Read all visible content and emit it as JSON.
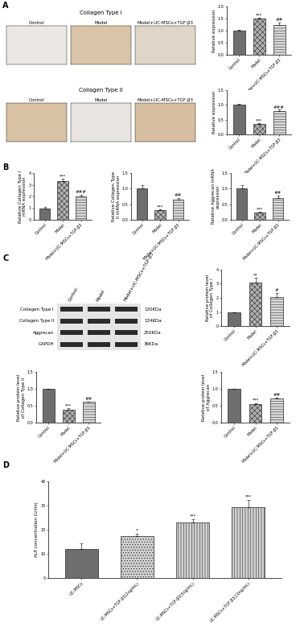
{
  "panel_letters": [
    "A",
    "B",
    "C",
    "D"
  ],
  "micrographs": [
    {
      "title": "Collagen Type I",
      "labels": [
        "Control",
        "Model",
        "Model+UC-MSCs+TGF-β3"
      ]
    },
    {
      "title": "Collagen Type II",
      "labels": [
        "Control",
        "Model",
        "Model+UC-MSCs+TGF-β3"
      ]
    }
  ],
  "western_blot": {
    "lanes": [
      "Control",
      "Model",
      "Model+UC-MSCs+TGF-β3"
    ],
    "bands": [
      {
        "label": "Collagen Type I",
        "size": "130KDa"
      },
      {
        "label": "Collagen Type II",
        "size": "134KDa"
      },
      {
        "label": "Aggrecan",
        "size": "250KDa"
      },
      {
        "label": "GAPDH",
        "size": "36KDa"
      }
    ]
  },
  "chart_data": [
    {
      "type": "bar",
      "ylabel": "Relative expression",
      "categories": [
        "Control",
        "Model",
        "Model+UC-MSCs+TGF-β3"
      ],
      "values": [
        1.0,
        1.5,
        1.25
      ],
      "errors": [
        0.03,
        0.04,
        0.08
      ],
      "annotations": [
        null,
        "***",
        "##"
      ],
      "colors": [
        "#6e6e6e",
        "#b0b0b0",
        "#d9d9d9"
      ],
      "ylim": [
        0,
        2.0
      ],
      "yticks": [
        {
          "value": 0,
          "label": "0.0"
        },
        0.5,
        {
          "value": 1,
          "label": "1.0"
        },
        1.5,
        {
          "value": 2,
          "label": "2.0"
        }
      ]
    },
    {
      "type": "bar",
      "ylabel": "Relative expression",
      "categories": [
        "Control",
        "Model",
        "Model+UC-MSCs+TGF-β3"
      ],
      "values": [
        1.0,
        0.35,
        0.8
      ],
      "errors": [
        0.03,
        0.02,
        0.04
      ],
      "annotations": [
        null,
        "***",
        "###"
      ],
      "colors": [
        "#6e6e6e",
        "#b0b0b0",
        "#d9d9d9"
      ],
      "ylim": [
        0,
        1.5
      ],
      "yticks": [
        {
          "value": 0,
          "label": "0.0"
        },
        0.5,
        {
          "value": 1,
          "label": "1.0"
        },
        1.5
      ]
    },
    {
      "type": "bar",
      "ylabel": "Relative Collagen Type I mRNA expression",
      "categories": [
        "Control",
        "Model",
        "Model+UC-MSCs+TGF-β3"
      ],
      "values": [
        1.0,
        3.3,
        2.0
      ],
      "errors": [
        0.08,
        0.2,
        0.15
      ],
      "annotations": [
        null,
        "***",
        "###"
      ],
      "colors": [
        "#6e6e6e",
        "#b0b0b0",
        "#d9d9d9"
      ],
      "ylim": [
        0,
        4
      ],
      "yticks": [
        0,
        1,
        2,
        3,
        4
      ]
    },
    {
      "type": "bar",
      "ylabel": "Relative Collagen Type II mRNA expression",
      "categories": [
        "Control",
        "Model",
        "Model+UC-MSCs+TGF-β3"
      ],
      "values": [
        1.0,
        0.3,
        0.65
      ],
      "errors": [
        0.12,
        0.04,
        0.05
      ],
      "annotations": [
        null,
        "***",
        "##"
      ],
      "colors": [
        "#6e6e6e",
        "#b0b0b0",
        "#d9d9d9"
      ],
      "ylim": [
        0,
        1.5
      ],
      "yticks": [
        {
          "value": 0,
          "label": "0.0"
        },
        0.5,
        {
          "value": 1,
          "label": "1.0"
        },
        1.5
      ]
    },
    {
      "type": "bar",
      "ylabel": "Relative Aggrecan mRNA expression",
      "categories": [
        "Control",
        "Model",
        "Model+UC-MSCs+TGF-β3"
      ],
      "values": [
        1.0,
        0.22,
        0.7
      ],
      "errors": [
        0.1,
        0.03,
        0.08
      ],
      "annotations": [
        null,
        "***",
        "##"
      ],
      "colors": [
        "#6e6e6e",
        "#b0b0b0",
        "#d9d9d9"
      ],
      "ylim": [
        0,
        1.5
      ],
      "yticks": [
        {
          "value": 0,
          "label": "0.0"
        },
        0.5,
        {
          "value": 1,
          "label": "1.0"
        },
        1.5
      ]
    },
    {
      "type": "bar",
      "ylabel": "Relative protein level of Collagen Type I",
      "categories": [
        "Control",
        "Model",
        "Model+UC-MSCs+TGF-β3"
      ],
      "values": [
        1.0,
        3.1,
        2.05
      ],
      "errors": [
        0,
        0.3,
        0.3
      ],
      "annotations": [
        null,
        "**",
        "#"
      ],
      "colors": [
        "#6e6e6e",
        "#b0b0b0",
        "#d9d9d9"
      ],
      "ylim": [
        0,
        4
      ],
      "yticks": [
        0,
        1,
        2,
        3,
        4
      ]
    },
    {
      "type": "bar",
      "ylabel": "Relative protein level of Collagen Type II",
      "categories": [
        "Control",
        "Model",
        "Model+UC-MSCs+TGF-β3"
      ],
      "values": [
        1.0,
        0.37,
        0.62
      ],
      "errors": [
        0,
        0.05,
        0
      ],
      "annotations": [
        null,
        "***",
        "##"
      ],
      "colors": [
        "#6e6e6e",
        "#b0b0b0",
        "#d9d9d9"
      ],
      "ylim": [
        0,
        1.5
      ],
      "yticks": [
        {
          "value": 0,
          "label": "0.0"
        },
        0.5,
        {
          "value": 1,
          "label": "1.0"
        },
        1.5
      ]
    },
    {
      "type": "bar",
      "ylabel": "Relative protein level of Aggrecan",
      "categories": [
        "Control",
        "Model",
        "Model+UC-MSCs+TGF-β3"
      ],
      "values": [
        1.0,
        0.55,
        0.72
      ],
      "errors": [
        0,
        0.03,
        0.02
      ],
      "annotations": [
        null,
        "***",
        "##"
      ],
      "colors": [
        "#6e6e6e",
        "#b0b0b0",
        "#d9d9d9"
      ],
      "ylim": [
        0,
        1.5
      ],
      "yticks": [
        {
          "value": 0,
          "label": "0.0"
        },
        0.5,
        {
          "value": 1,
          "label": "1.0"
        },
        1.5
      ]
    },
    {
      "type": "bar",
      "ylabel": "ALP concentration (U/ml)",
      "categories": [
        "UC-MSCs",
        "UC-MSCs+TGF-β3(2ng/mL)",
        "UC-MSCs+TGF-β3(5ng/mL)",
        "UC-MSCs+TGF-β3(10ng/mL)"
      ],
      "values": [
        12,
        17.5,
        23,
        29.5
      ],
      "errors": [
        2.5,
        1,
        1.5,
        3
      ],
      "annotations": [
        null,
        "*",
        "***",
        "***"
      ],
      "colors": [
        "#6e6e6e",
        "#cfcfcf",
        "#cfcfcf",
        "#cfcfcf"
      ],
      "ylim": [
        0,
        40
      ],
      "yticks": [
        0,
        10,
        20,
        30,
        40
      ]
    }
  ]
}
